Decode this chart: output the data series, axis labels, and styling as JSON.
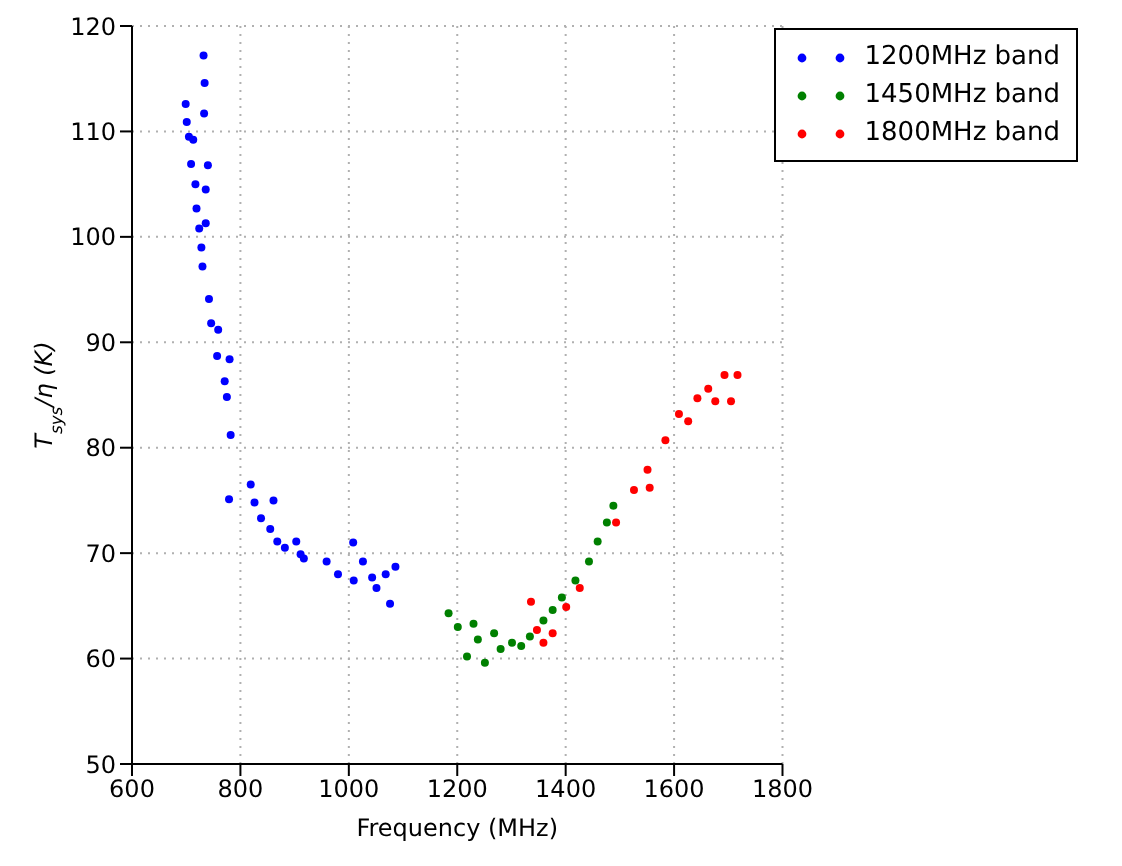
{
  "chart_data": {
    "type": "scatter",
    "xlabel": "Frequency (MHz)",
    "ylabel": "T$_{sys}$/η (K)",
    "xlim": [
      600,
      1800
    ],
    "xticks": [
      600,
      800,
      1000,
      1200,
      1400,
      1600,
      1800
    ],
    "ylim": [
      50,
      120
    ],
    "yticks": [
      50,
      60,
      70,
      80,
      90,
      100,
      110,
      120
    ],
    "grid": true,
    "legend": "top right",
    "marker": "circle",
    "series": [
      {
        "name": "1200MHz band",
        "color": "#0000ff",
        "x": [
          699,
          701,
          705,
          713,
          709,
          732,
          734,
          733,
          740,
          736,
          717,
          719,
          724,
          736,
          728,
          730,
          742,
          746,
          759,
          757,
          780,
          771,
          775,
          782,
          779,
          819,
          826,
          838,
          861,
          855,
          868,
          882,
          903,
          911,
          917,
          959,
          980,
          1009,
          1008,
          1026,
          1043,
          1051,
          1068,
          1076,
          1086
        ],
        "values": [
          112.6,
          110.9,
          109.5,
          109.2,
          106.9,
          117.2,
          114.6,
          111.7,
          106.8,
          104.5,
          105.0,
          102.7,
          100.8,
          101.3,
          99.0,
          97.2,
          94.1,
          91.8,
          91.2,
          88.7,
          88.4,
          86.3,
          84.8,
          81.2,
          75.1,
          76.5,
          74.8,
          73.3,
          75.0,
          72.3,
          71.1,
          70.5,
          71.1,
          69.9,
          69.5,
          69.2,
          68.0,
          67.4,
          71.0,
          69.2,
          67.7,
          66.7,
          68.0,
          65.2,
          68.7
        ]
      },
      {
        "name": "1450MHz band",
        "color": "#008000",
        "x": [
          1184,
          1201,
          1218,
          1230,
          1238,
          1251,
          1268,
          1280,
          1301,
          1318,
          1334,
          1359,
          1376,
          1393,
          1418,
          1443,
          1459,
          1476,
          1488
        ],
        "values": [
          64.3,
          63.0,
          60.2,
          63.3,
          61.8,
          59.6,
          62.4,
          60.9,
          61.5,
          61.2,
          62.1,
          63.6,
          64.6,
          65.8,
          67.4,
          69.2,
          71.1,
          72.9,
          74.5
        ]
      },
      {
        "name": "1800MHz band",
        "color": "#ff0000",
        "x": [
          1336,
          1347,
          1359,
          1376,
          1401,
          1426,
          1493,
          1526,
          1551,
          1555,
          1584,
          1609,
          1626,
          1643,
          1663,
          1676,
          1693,
          1705,
          1717
        ],
        "values": [
          65.4,
          62.7,
          61.5,
          62.4,
          64.9,
          66.7,
          72.9,
          76.0,
          77.9,
          76.2,
          80.7,
          83.2,
          82.5,
          84.7,
          85.6,
          84.4,
          86.9,
          84.4,
          86.9
        ]
      }
    ]
  }
}
